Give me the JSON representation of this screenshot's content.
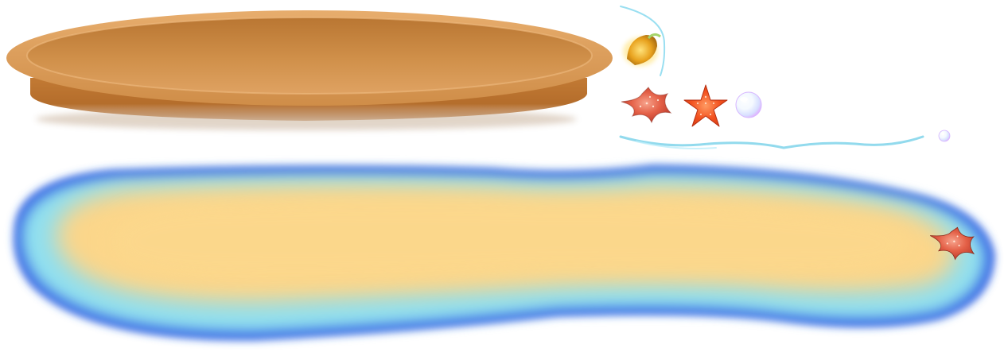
{
  "sprite_sheet": {
    "background": "#ffffff",
    "sprites": [
      {
        "id": "wooden-platter",
        "kind": "platter",
        "color_rim": "#d89a55",
        "color_dish": "#c9863f",
        "color_shadow": "#b0702e"
      },
      {
        "id": "glowing-shell",
        "kind": "shell",
        "color": "#e0a020"
      },
      {
        "id": "red-starfish-large",
        "kind": "starfish",
        "color": "#e0553a"
      },
      {
        "id": "orange-starfish-small",
        "kind": "starfish",
        "color": "#f04a20"
      },
      {
        "id": "bubble-large",
        "kind": "bubble"
      },
      {
        "id": "bubble-small",
        "kind": "bubble"
      },
      {
        "id": "water-wave-line",
        "kind": "wave",
        "color": "#6fd0ea"
      },
      {
        "id": "sand-island",
        "kind": "island",
        "color_sand": "#fbd68a",
        "color_water": "#8fdff0",
        "color_edge": "#2f63e6"
      },
      {
        "id": "island-starfish",
        "kind": "starfish",
        "color": "#e0553a"
      }
    ]
  }
}
